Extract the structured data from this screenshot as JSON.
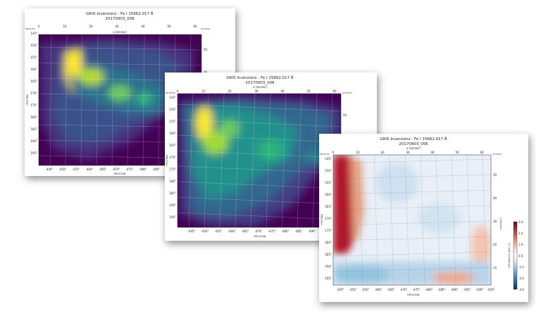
{
  "chart_data": [
    {
      "type": "heatmap",
      "title": "GRIS Inversions - Fe I 15662.017 Å",
      "subtitle": "20170903_006",
      "xlabel": "HPLN-TAN",
      "ylabel": "HPLT-TAN",
      "top_xlabel": "x (arcsec)",
      "colormap": "viridis",
      "x_ticks": [
        "-445°",
        "-450°",
        "-455°",
        "-460°",
        "-465°",
        "-470°",
        "-475°",
        "-480°",
        "-485°",
        "-490°",
        "-495°"
      ],
      "y_ticks": [
        "145°",
        "150°",
        "155°",
        "160°",
        "165°",
        "170°",
        "175°",
        "180°",
        "185°",
        "190°",
        "195°"
      ],
      "top_ticks": [
        "0",
        "10",
        "20",
        "30",
        "40",
        "50",
        "60"
      ],
      "right_ticks": [
        "50",
        "40"
      ],
      "corner_left": "08:52:55",
      "corner_right": "12:18:57"
    },
    {
      "type": "heatmap",
      "title": "GRIS Inversions - Fe I 15662.017 Å",
      "subtitle": "20170903_006",
      "xlabel": "HPLN-TAN",
      "ylabel": "HPLT-TAN",
      "top_xlabel": "x (arcsec)",
      "colormap": "viridis",
      "x_ticks": [
        "-445°",
        "-450°",
        "-455°",
        "-460°",
        "-465°",
        "-470°",
        "-475°",
        "-480°",
        "-485°",
        "-490°",
        "-495°"
      ],
      "y_ticks": [
        "145°",
        "150°",
        "155°",
        "160°",
        "165°",
        "170°",
        "175°",
        "180°",
        "185°",
        "190°",
        "195°"
      ],
      "top_ticks": [
        "0",
        "10",
        "20",
        "30",
        "40",
        "50",
        "60"
      ],
      "right_ticks": [
        "50"
      ],
      "corner_left": "08:52:55",
      "corner_right": "12:18:57"
    },
    {
      "type": "heatmap",
      "title": "GRIS Inversions - Fe I 15662.017 Å",
      "subtitle": "20170903_006",
      "xlabel": "HPLN-TAN",
      "ylabel": "HPLT-TAN",
      "top_xlabel": "x (arcsec)",
      "colormap": "RdBu_r",
      "x_ticks": [
        "-445°",
        "-450°",
        "-455°",
        "-460°",
        "-465°",
        "-470°",
        "-475°",
        "-480°",
        "-485°",
        "-490°",
        "-495°",
        "-500°",
        "-505°"
      ],
      "y_ticks": [
        "145°",
        "150°",
        "155°",
        "160°",
        "165°",
        "170°",
        "175°",
        "180°",
        "185°",
        "190°",
        "195°"
      ],
      "top_ticks": [
        "0",
        "10",
        "20",
        "30",
        "40",
        "50",
        "60"
      ],
      "right_ticks": [
        "50",
        "40",
        "30",
        "20",
        "10"
      ],
      "right_axis_label": "y (arcsec)",
      "colorbar_label": "LOS Velocity (km / s)",
      "colorbar_ticks": [
        "3.0",
        "2.0",
        "1.0",
        "0.0",
        "-1.0",
        "-2.0",
        "-3.0"
      ],
      "colorbar_range": [
        -3.0,
        3.0
      ],
      "corner_left": "08:52:55",
      "corner_right": "12:18:57"
    }
  ]
}
